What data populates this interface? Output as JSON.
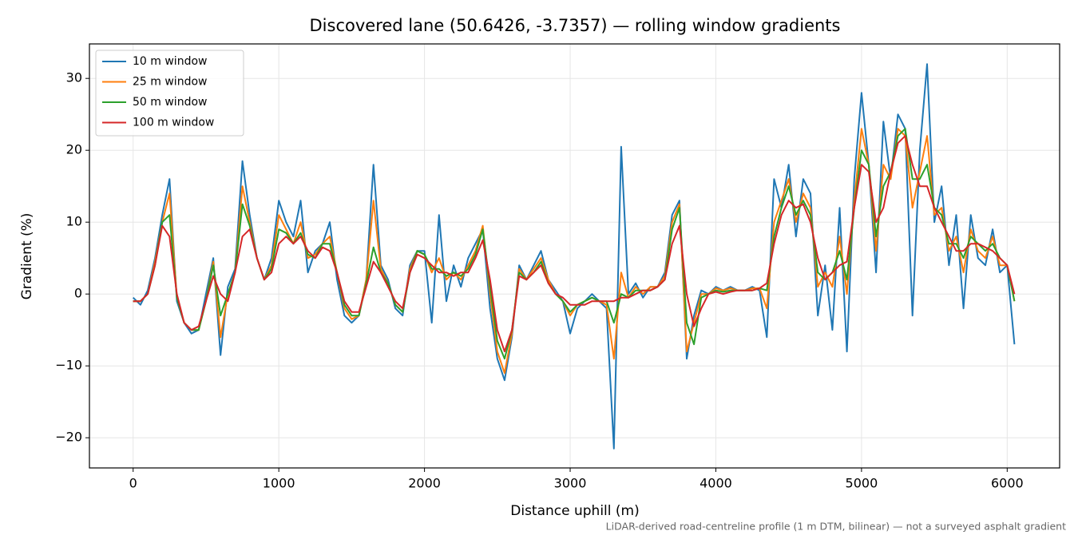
{
  "chart_data": {
    "type": "line",
    "title": "Discovered lane (50.6426, -3.7357) — rolling window gradients",
    "xlabel": "Distance uphill (m)",
    "ylabel": "Gradient (%)",
    "annotation": "LiDAR-derived road-centreline profile (1 m DTM, bilinear) — not a surveyed asphalt gradient",
    "grid": true,
    "legend": "upper left",
    "xlim": [
      -300,
      6360
    ],
    "ylim": [
      -24.2,
      34.8
    ],
    "xticks": [
      0,
      1000,
      2000,
      3000,
      4000,
      5000,
      6000
    ],
    "yticks": [
      {
        "value": -20,
        "label": "−20"
      },
      {
        "value": -10,
        "label": "−10"
      },
      0,
      10,
      20,
      30
    ],
    "x": [
      0,
      50,
      100,
      150,
      200,
      250,
      300,
      350,
      400,
      450,
      500,
      550,
      600,
      650,
      700,
      750,
      800,
      850,
      900,
      950,
      1000,
      1050,
      1100,
      1150,
      1200,
      1250,
      1300,
      1350,
      1400,
      1450,
      1500,
      1550,
      1600,
      1650,
      1700,
      1750,
      1800,
      1850,
      1900,
      1950,
      2000,
      2050,
      2100,
      2150,
      2200,
      2250,
      2300,
      2350,
      2400,
      2450,
      2500,
      2550,
      2600,
      2650,
      2700,
      2750,
      2800,
      2850,
      2900,
      2950,
      3000,
      3050,
      3100,
      3150,
      3200,
      3250,
      3300,
      3350,
      3400,
      3450,
      3500,
      3550,
      3600,
      3650,
      3700,
      3750,
      3800,
      3850,
      3900,
      3950,
      4000,
      4050,
      4100,
      4150,
      4200,
      4250,
      4300,
      4350,
      4400,
      4450,
      4500,
      4550,
      4600,
      4650,
      4700,
      4750,
      4800,
      4850,
      4900,
      4950,
      5000,
      5050,
      5100,
      5150,
      5200,
      5250,
      5300,
      5350,
      5400,
      5450,
      5500,
      5550,
      5600,
      5650,
      5700,
      5750,
      5800,
      5850,
      5900,
      5950,
      6000,
      6050
    ],
    "series": [
      {
        "name": "10 m window",
        "color": "#1f77b4",
        "values": [
          -0.5,
          -1.5,
          0.5,
          5,
          11,
          16,
          -1,
          -4,
          -5.5,
          -5,
          0,
          5,
          -8.5,
          1,
          3.5,
          18.5,
          11,
          5,
          2,
          5,
          13,
          10,
          8,
          13,
          3,
          6,
          7,
          10,
          2,
          -3,
          -4,
          -3,
          2,
          18,
          4,
          2,
          -2,
          -3,
          4,
          6,
          6,
          -4,
          11,
          -1,
          4,
          1,
          5,
          7,
          9,
          -2,
          -9,
          -12,
          -6,
          4,
          2,
          4,
          6,
          2,
          0.5,
          -1,
          -5.5,
          -2,
          -1,
          0,
          -1,
          -2,
          -21.5,
          20.5,
          0,
          1.5,
          -0.5,
          1,
          1,
          3,
          11,
          13,
          -9,
          -3,
          0.5,
          0,
          1,
          0.5,
          1,
          0.5,
          0.5,
          1,
          0.5,
          -6,
          16,
          12,
          18,
          8,
          16,
          14,
          -3,
          4,
          -5,
          12,
          -8,
          16,
          28,
          18,
          3,
          24,
          16,
          25,
          23,
          -3,
          20,
          32,
          10,
          15,
          4,
          11,
          -2,
          11,
          5,
          4,
          9,
          3,
          4,
          -7
        ]
      },
      {
        "name": "25 m window",
        "color": "#ff7f0e",
        "values": [
          -1,
          -1,
          0,
          4.5,
          10,
          14,
          -0.5,
          -4,
          -5,
          -5,
          -1,
          4.5,
          -6,
          0,
          3,
          15,
          10,
          5,
          2,
          4,
          11,
          9,
          7,
          10,
          5,
          5.5,
          7,
          8,
          3,
          -2,
          -3.5,
          -3,
          2,
          13,
          3.5,
          1.5,
          -1.5,
          -2.5,
          3.5,
          6,
          5.5,
          3,
          5,
          2,
          3,
          2,
          4,
          6,
          9.5,
          0,
          -8,
          -11,
          -5.5,
          3.5,
          2,
          3.5,
          5,
          2,
          0,
          -1,
          -3,
          -1.5,
          -1,
          -0.5,
          -1,
          -1.5,
          -9,
          3,
          -0.5,
          1,
          0,
          1,
          1,
          2.5,
          10,
          12.5,
          -8,
          -4,
          0,
          0,
          0.8,
          0.5,
          0.8,
          0.5,
          0.5,
          0.8,
          0.8,
          -2,
          10,
          13,
          16,
          10,
          14,
          12,
          1,
          3,
          1,
          8,
          0,
          13,
          23,
          18,
          6,
          18,
          16,
          23,
          22,
          12,
          17,
          22,
          11,
          12,
          6,
          8,
          3,
          9,
          6,
          5,
          8,
          4,
          4,
          -1
        ]
      },
      {
        "name": "50 m window",
        "color": "#2ca02c",
        "values": [
          -1,
          -1,
          0,
          4,
          10,
          11,
          -0.5,
          -4,
          -5,
          -5,
          -1,
          4,
          -3,
          0,
          3,
          12.5,
          9.5,
          5,
          2,
          3.5,
          9,
          8.5,
          7,
          8.5,
          5.5,
          5,
          7,
          7,
          3,
          -1.5,
          -3,
          -3,
          1.5,
          6.5,
          3,
          1.5,
          -1.5,
          -2.5,
          3,
          6,
          5.5,
          3.5,
          3.5,
          2.5,
          3,
          2.5,
          3.5,
          5.5,
          9,
          1,
          -6.5,
          -9,
          -5,
          3,
          2,
          3,
          4.5,
          1.5,
          0,
          -1,
          -2.5,
          -1.5,
          -1,
          -0.5,
          -1,
          -1,
          -4,
          0,
          -0.5,
          0.5,
          0.5,
          0.5,
          1,
          2,
          9,
          12,
          -4,
          -7,
          -0.5,
          0,
          0.5,
          0.3,
          0.5,
          0.5,
          0.5,
          0.5,
          0.8,
          0.5,
          8,
          12,
          15,
          11,
          13,
          11,
          3,
          2,
          3,
          6,
          2,
          12,
          20,
          18,
          8,
          15,
          17,
          22,
          23,
          16,
          16,
          18,
          12,
          11,
          7,
          7,
          5,
          8,
          7,
          6,
          7,
          5,
          4,
          -1
        ]
      },
      {
        "name": "100 m window",
        "color": "#d62728",
        "values": [
          -1,
          -1,
          0,
          4,
          9.5,
          8,
          0,
          -4,
          -5,
          -4.5,
          -1,
          2.5,
          0,
          -1,
          3,
          8,
          9,
          5,
          2,
          3,
          7,
          8,
          7,
          8,
          6,
          5,
          6.5,
          6,
          3,
          -1,
          -2.5,
          -2.5,
          1,
          4.5,
          3,
          1,
          -1,
          -2,
          3,
          5.5,
          5,
          4,
          3,
          3,
          2.5,
          3,
          3,
          5,
          7.5,
          2,
          -5,
          -8,
          -5,
          2.5,
          2,
          3,
          4,
          1.5,
          0,
          -0.5,
          -1.5,
          -1.5,
          -1.5,
          -1,
          -1,
          -1,
          -1,
          -0.5,
          -0.5,
          0,
          0.5,
          0.5,
          1,
          2,
          7,
          9.5,
          0,
          -4.5,
          -2,
          0,
          0.3,
          0,
          0.3,
          0.5,
          0.5,
          0.5,
          0.8,
          1.5,
          7,
          11,
          13,
          12,
          12.5,
          10,
          5,
          2,
          3,
          4,
          4.5,
          12,
          18,
          17,
          10,
          12,
          17,
          21,
          22,
          18,
          15,
          15,
          12,
          10,
          8,
          6,
          6,
          7,
          7,
          6.5,
          6,
          5,
          4,
          0
        ]
      }
    ]
  }
}
